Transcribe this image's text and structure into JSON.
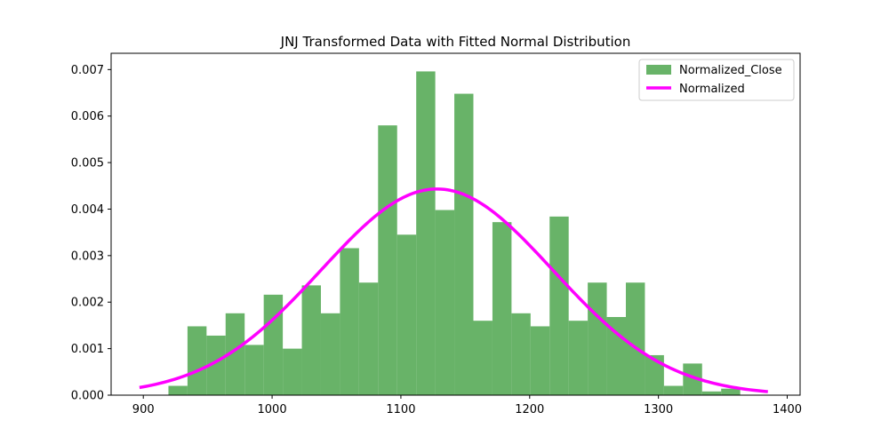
{
  "chart_data": {
    "type": "bar",
    "title": "JNJ Transformed Data with Fitted Normal Distribution",
    "xlabel": "",
    "ylabel": "",
    "xlim": [
      875,
      1410
    ],
    "ylim": [
      0,
      0.00735
    ],
    "xticks": [
      900,
      1000,
      1100,
      1200,
      1300,
      1400
    ],
    "xtick_labels": [
      "900",
      "1000",
      "1100",
      "1200",
      "1300",
      "1400"
    ],
    "yticks": [
      0.0,
      0.001,
      0.002,
      0.003,
      0.004,
      0.005,
      0.006,
      0.007
    ],
    "ytick_labels": [
      "0.000",
      "0.001",
      "0.002",
      "0.003",
      "0.004",
      "0.005",
      "0.006",
      "0.007"
    ],
    "grid": false,
    "legend_position": "top-right",
    "series": [
      {
        "name": "Normalized_Close",
        "kind": "histogram",
        "color": "#4da64d",
        "bins": [
          {
            "x0": 919.5,
            "x1": 934.3,
            "value": 0.0002
          },
          {
            "x0": 934.3,
            "x1": 949.1,
            "value": 0.00148
          },
          {
            "x0": 949.1,
            "x1": 963.9,
            "value": 0.00128
          },
          {
            "x0": 963.9,
            "x1": 978.7,
            "value": 0.00176
          },
          {
            "x0": 978.7,
            "x1": 993.5,
            "value": 0.00108
          },
          {
            "x0": 993.5,
            "x1": 1008.3,
            "value": 0.00216
          },
          {
            "x0": 1008.3,
            "x1": 1023.1,
            "value": 0.001
          },
          {
            "x0": 1023.1,
            "x1": 1037.9,
            "value": 0.00236
          },
          {
            "x0": 1037.9,
            "x1": 1052.7,
            "value": 0.00176
          },
          {
            "x0": 1052.7,
            "x1": 1067.5,
            "value": 0.00316
          },
          {
            "x0": 1067.5,
            "x1": 1082.3,
            "value": 0.00242
          },
          {
            "x0": 1082.3,
            "x1": 1097.1,
            "value": 0.0058
          },
          {
            "x0": 1097.1,
            "x1": 1111.9,
            "value": 0.00345
          },
          {
            "x0": 1111.9,
            "x1": 1126.7,
            "value": 0.00696
          },
          {
            "x0": 1126.7,
            "x1": 1141.5,
            "value": 0.00398
          },
          {
            "x0": 1141.5,
            "x1": 1156.3,
            "value": 0.00648
          },
          {
            "x0": 1156.3,
            "x1": 1171.1,
            "value": 0.0016
          },
          {
            "x0": 1171.1,
            "x1": 1185.9,
            "value": 0.00372
          },
          {
            "x0": 1185.9,
            "x1": 1200.7,
            "value": 0.00176
          },
          {
            "x0": 1200.7,
            "x1": 1215.5,
            "value": 0.00148
          },
          {
            "x0": 1215.5,
            "x1": 1230.3,
            "value": 0.00384
          },
          {
            "x0": 1230.3,
            "x1": 1245.1,
            "value": 0.0016
          },
          {
            "x0": 1245.1,
            "x1": 1259.9,
            "value": 0.00242
          },
          {
            "x0": 1259.9,
            "x1": 1274.7,
            "value": 0.00168
          },
          {
            "x0": 1274.7,
            "x1": 1289.5,
            "value": 0.00242
          },
          {
            "x0": 1289.5,
            "x1": 1304.3,
            "value": 0.00086
          },
          {
            "x0": 1304.3,
            "x1": 1319.1,
            "value": 0.0002
          },
          {
            "x0": 1319.1,
            "x1": 1333.9,
            "value": 0.00068
          },
          {
            "x0": 1333.9,
            "x1": 1348.7,
            "value": 8e-05
          },
          {
            "x0": 1348.7,
            "x1": 1363.5,
            "value": 0.00014
          }
        ]
      },
      {
        "name": "Normalized",
        "kind": "line",
        "color": "#ff00ff",
        "distribution": "normal",
        "mean": 1128,
        "std": 90,
        "x_range": [
          897,
          1385
        ]
      }
    ]
  }
}
